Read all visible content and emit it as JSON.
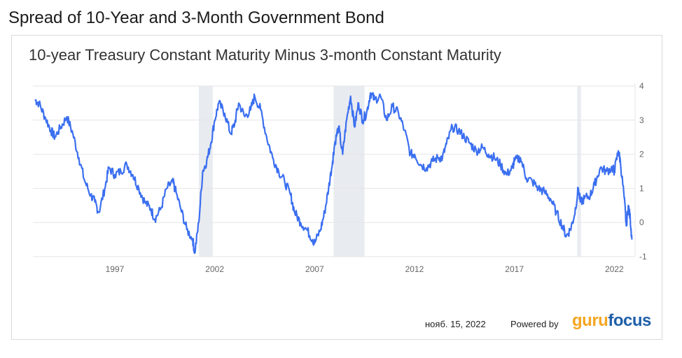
{
  "page_title": "Spread of 10-Year and 3-Month Government Bond",
  "footer": {
    "date": "нояб. 15, 2022",
    "powered_by": "Powered by",
    "logo_part1": "guru",
    "logo_part2": "focus"
  },
  "colors": {
    "line": "#3b6ff0",
    "recession": "#e8ebf0",
    "grid": "#e6e6e6",
    "logo_guru": "#f5a623",
    "logo_focus": "#1f5fa8"
  },
  "chart_data": {
    "type": "line",
    "title": "10-year Treasury Constant Maturity Minus 3-month Constant Maturity",
    "xlabel": "",
    "ylabel": "",
    "xlim": [
      1992.9,
      2022.9
    ],
    "ylim": [
      -1,
      4
    ],
    "x_ticks": [
      1997,
      2002,
      2007,
      2012,
      2017,
      2022
    ],
    "y_ticks": [
      -1,
      0,
      1,
      2,
      3,
      4
    ],
    "grid": true,
    "y_axis_position": "right",
    "recessions": [
      [
        2001.2,
        2001.9
      ],
      [
        2007.95,
        2009.5
      ],
      [
        2020.15,
        2020.33
      ]
    ],
    "series": [
      {
        "x": [
          1993.0,
          1993.2,
          1993.5,
          1993.8,
          1994.0,
          1994.3,
          1994.6,
          1994.9,
          1995.2,
          1995.5,
          1995.8,
          1996.0,
          1996.2,
          1996.5,
          1996.7,
          1997.0,
          1997.3,
          1997.6,
          1997.9,
          1998.2,
          1998.5,
          1998.8,
          1999.0,
          1999.3,
          1999.6,
          1999.9,
          2000.0,
          2000.3,
          2000.6,
          2000.9,
          2001.0,
          2001.2,
          2001.4,
          2001.6,
          2001.8,
          2002.0,
          2002.2,
          2002.5,
          2002.8,
          2003.0,
          2003.2,
          2003.5,
          2003.8,
          2004.0,
          2004.3,
          2004.6,
          2004.9,
          2005.2,
          2005.5,
          2005.8,
          2006.0,
          2006.3,
          2006.6,
          2006.9,
          2007.0,
          2007.3,
          2007.5,
          2007.7,
          2007.9,
          2008.0,
          2008.2,
          2008.4,
          2008.6,
          2008.8,
          2009.0,
          2009.2,
          2009.4,
          2009.6,
          2009.8,
          2010.0,
          2010.3,
          2010.6,
          2010.9,
          2011.2,
          2011.5,
          2011.8,
          2012.0,
          2012.3,
          2012.6,
          2012.9,
          2013.2,
          2013.4,
          2013.6,
          2013.9,
          2014.2,
          2014.5,
          2014.8,
          2015.1,
          2015.4,
          2015.7,
          2016.0,
          2016.3,
          2016.6,
          2016.9,
          2017.0,
          2017.3,
          2017.6,
          2017.9,
          2018.2,
          2018.5,
          2018.8,
          2019.1,
          2019.4,
          2019.6,
          2019.8,
          2020.0,
          2020.2,
          2020.3,
          2020.5,
          2020.8,
          2021.0,
          2021.3,
          2021.6,
          2021.9,
          2022.0,
          2022.2,
          2022.3,
          2022.5,
          2022.6,
          2022.7,
          2022.8,
          2022.88
        ],
        "y": [
          3.6,
          3.5,
          3.1,
          2.7,
          2.5,
          2.8,
          3.1,
          2.6,
          1.9,
          1.2,
          0.8,
          0.6,
          0.3,
          1.0,
          1.6,
          1.4,
          1.5,
          1.7,
          1.4,
          1.0,
          0.6,
          0.4,
          0.1,
          0.4,
          1.0,
          1.2,
          1.0,
          0.4,
          -0.2,
          -0.5,
          -0.9,
          0.0,
          1.5,
          1.8,
          2.3,
          3.0,
          3.5,
          3.2,
          2.6,
          2.9,
          3.5,
          3.1,
          3.3,
          3.7,
          3.3,
          2.5,
          1.9,
          1.5,
          1.2,
          0.8,
          0.3,
          0.0,
          -0.2,
          -0.5,
          -0.6,
          -0.2,
          0.3,
          1.0,
          1.8,
          2.3,
          2.8,
          2.0,
          3.0,
          3.7,
          2.8,
          3.5,
          3.0,
          3.2,
          3.8,
          3.6,
          3.7,
          3.0,
          3.4,
          3.2,
          2.7,
          2.0,
          2.0,
          1.7,
          1.6,
          1.8,
          1.9,
          1.9,
          2.3,
          2.8,
          2.7,
          2.5,
          2.3,
          2.1,
          2.2,
          2.0,
          1.9,
          1.7,
          1.4,
          1.6,
          1.8,
          1.9,
          1.3,
          1.2,
          1.0,
          0.9,
          0.7,
          0.3,
          -0.1,
          -0.4,
          -0.2,
          0.2,
          1.0,
          0.6,
          0.7,
          0.8,
          1.1,
          1.6,
          1.5,
          1.6,
          1.5,
          2.1,
          1.8,
          0.7,
          -0.1,
          0.5,
          0.1,
          -0.5
        ]
      }
    ]
  }
}
